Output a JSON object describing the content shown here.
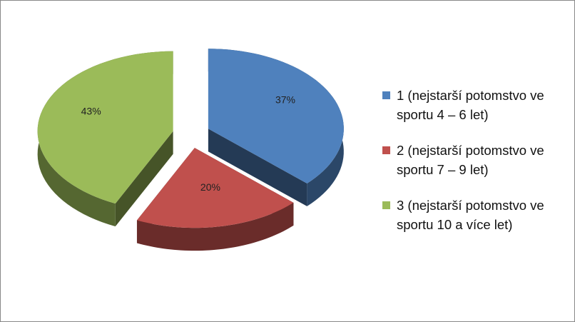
{
  "chart_data": {
    "type": "pie",
    "categories": [
      "1 (nejstarší potomstvo ve sportu 4 – 6 let)",
      "2 (nejstarší potomstvo ve sportu 7 – 9 let)",
      "3 (nejstarší potomstvo ve sportu 10 a více let)"
    ],
    "values": [
      37,
      20,
      43
    ],
    "value_labels": [
      "37%",
      "20%",
      "43%"
    ],
    "colors": [
      "#4f81bd",
      "#c0504d",
      "#9bbb59"
    ],
    "legend": "right"
  }
}
